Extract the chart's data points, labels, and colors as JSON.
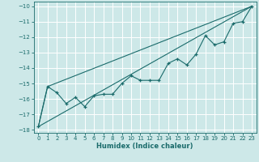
{
  "xlabel": "Humidex (Indice chaleur)",
  "bg_color": "#cde8e8",
  "grid_color": "#ffffff",
  "line_color": "#1a6b6b",
  "xlim": [
    -0.5,
    23.5
  ],
  "ylim": [
    -18.2,
    -9.7
  ],
  "xticks": [
    0,
    1,
    2,
    3,
    4,
    5,
    6,
    7,
    8,
    9,
    10,
    11,
    12,
    13,
    14,
    15,
    16,
    17,
    18,
    19,
    20,
    21,
    22,
    23
  ],
  "yticks": [
    -18,
    -17,
    -16,
    -15,
    -14,
    -13,
    -12,
    -11,
    -10
  ],
  "main_x": [
    0,
    1,
    2,
    3,
    4,
    5,
    6,
    7,
    8,
    9,
    10,
    11,
    12,
    13,
    14,
    15,
    16,
    17,
    18,
    19,
    20,
    21,
    22,
    23
  ],
  "main_y": [
    -17.8,
    -15.2,
    -15.6,
    -16.3,
    -15.9,
    -16.5,
    -15.8,
    -15.7,
    -15.7,
    -15.0,
    -14.5,
    -14.8,
    -14.8,
    -14.8,
    -13.7,
    -13.4,
    -13.8,
    -13.1,
    -11.9,
    -12.5,
    -12.3,
    -11.1,
    -11.0,
    -10.0
  ],
  "line1_x": [
    0,
    23
  ],
  "line1_y": [
    -17.8,
    -10.0
  ],
  "line2_x": [
    0,
    1,
    23
  ],
  "line2_y": [
    -17.8,
    -15.2,
    -10.0
  ]
}
